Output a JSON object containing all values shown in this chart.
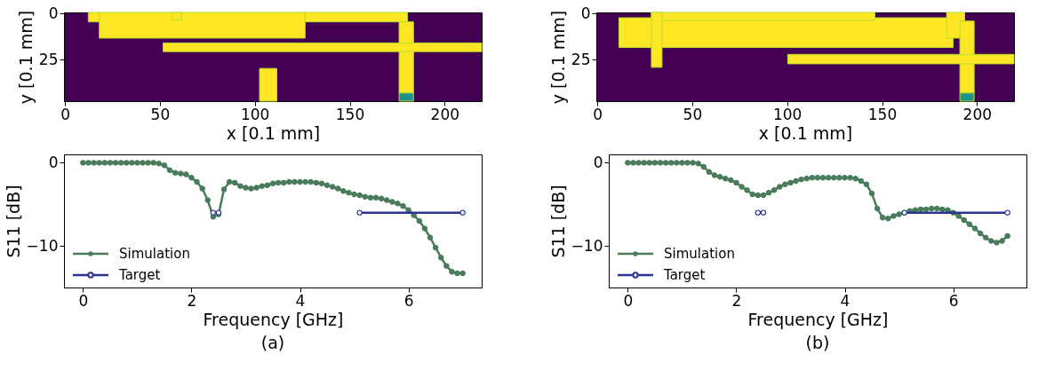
{
  "chart_data": [
    {
      "type": "scatter",
      "xlabel": "x [0.1 mm]",
      "ylabel": "y [0.1 mm]",
      "xlim": [
        -0.5,
        219.5
      ],
      "ylim": [
        47.5,
        -0.5
      ],
      "xticks": [
        0,
        50,
        100,
        150,
        200
      ],
      "yticks": [
        0,
        25
      ]
    },
    {
      "type": "scatter",
      "xlabel": "x [0.1 mm]",
      "ylabel": "y [0.1 mm]",
      "xlim": [
        -0.5,
        219.5
      ],
      "ylim": [
        47.5,
        -0.5
      ],
      "xticks": [
        0,
        50,
        100,
        150,
        200
      ],
      "yticks": [
        0,
        25
      ]
    },
    {
      "type": "line",
      "xlabel": "Frequency [GHz]",
      "ylabel": "S11 [dB]",
      "xlim": [
        -0.35,
        7.35
      ],
      "ylim": [
        -15,
        1
      ],
      "xticks": [
        0,
        2,
        4,
        6
      ],
      "yticks": [
        0,
        -10
      ],
      "grid": false,
      "legend": "bottom left",
      "marker": "circle",
      "line_style": "solid",
      "annotations": [
        "(a)"
      ],
      "series": [
        {
          "name": "Simulation",
          "color": "#4a7c5c",
          "x": [
            0,
            0.1,
            0.2,
            0.3,
            0.4,
            0.5,
            0.6,
            0.7,
            0.8,
            0.9,
            1.0,
            1.1,
            1.2,
            1.3,
            1.4,
            1.5,
            1.6,
            1.7,
            1.8,
            1.9,
            2.0,
            2.1,
            2.2,
            2.3,
            2.4,
            2.5,
            2.6,
            2.7,
            2.8,
            2.9,
            3.0,
            3.1,
            3.2,
            3.3,
            3.4,
            3.5,
            3.6,
            3.7,
            3.8,
            3.9,
            4.0,
            4.1,
            4.2,
            4.3,
            4.4,
            4.5,
            4.6,
            4.7,
            4.8,
            4.9,
            5.0,
            5.1,
            5.2,
            5.3,
            5.4,
            5.5,
            5.6,
            5.7,
            5.8,
            5.9,
            6.0,
            6.1,
            6.2,
            6.3,
            6.4,
            6.5,
            6.6,
            6.7,
            6.8,
            6.9,
            7.0
          ],
          "values": [
            0,
            0,
            0,
            0,
            0,
            0,
            0,
            0,
            0,
            0,
            0,
            0,
            0,
            0,
            -0.1,
            -0.3,
            -0.9,
            -1.2,
            -1.3,
            -1.4,
            -1.8,
            -2.3,
            -3.1,
            -4.5,
            -6.5,
            -6.2,
            -3.2,
            -2.3,
            -2.4,
            -2.8,
            -3.0,
            -3.1,
            -3.0,
            -2.8,
            -2.7,
            -2.5,
            -2.4,
            -2.4,
            -2.3,
            -2.3,
            -2.3,
            -2.3,
            -2.3,
            -2.4,
            -2.5,
            -2.7,
            -2.9,
            -3.1,
            -3.4,
            -3.6,
            -3.8,
            -3.9,
            -4.1,
            -4.2,
            -4.2,
            -4.3,
            -4.5,
            -4.7,
            -4.9,
            -5.2,
            -5.7,
            -6.3,
            -7.0,
            -7.9,
            -9.0,
            -10.2,
            -11.4,
            -12.4,
            -13.1,
            -13.3,
            -13.3
          ]
        },
        {
          "name": "Target",
          "color": "#2b3494",
          "x": [
            2.4,
            2.5,
            3.8,
            5.1,
            7.0
          ],
          "values": [
            -6,
            -6,
            null,
            -6,
            -6
          ]
        }
      ]
    },
    {
      "type": "line",
      "xlabel": "Frequency [GHz]",
      "ylabel": "S11 [dB]",
      "xlim": [
        -0.35,
        7.35
      ],
      "ylim": [
        -15,
        1
      ],
      "xticks": [
        0,
        2,
        4,
        6
      ],
      "yticks": [
        0,
        -10
      ],
      "grid": false,
      "legend": "bottom left",
      "marker": "circle",
      "line_style": "solid",
      "annotations": [
        "(b)"
      ],
      "series": [
        {
          "name": "Simulation",
          "color": "#4a7c5c",
          "x": [
            0,
            0.1,
            0.2,
            0.3,
            0.4,
            0.5,
            0.6,
            0.7,
            0.8,
            0.9,
            1.0,
            1.1,
            1.2,
            1.3,
            1.4,
            1.5,
            1.6,
            1.7,
            1.8,
            1.9,
            2.0,
            2.1,
            2.2,
            2.3,
            2.4,
            2.5,
            2.6,
            2.7,
            2.8,
            2.9,
            3.0,
            3.1,
            3.2,
            3.3,
            3.4,
            3.5,
            3.6,
            3.7,
            3.8,
            3.9,
            4.0,
            4.1,
            4.2,
            4.3,
            4.4,
            4.5,
            4.6,
            4.7,
            4.8,
            4.9,
            5.0,
            5.1,
            5.2,
            5.3,
            5.4,
            5.5,
            5.6,
            5.7,
            5.8,
            5.9,
            6.0,
            6.1,
            6.2,
            6.3,
            6.4,
            6.5,
            6.6,
            6.7,
            6.8,
            6.9,
            7.0
          ],
          "values": [
            0,
            0,
            0,
            0,
            0,
            0,
            0,
            0,
            0,
            0,
            0,
            0,
            0,
            -0.1,
            -0.5,
            -1.1,
            -1.5,
            -1.7,
            -1.9,
            -2.1,
            -2.4,
            -2.9,
            -3.3,
            -3.8,
            -3.9,
            -3.9,
            -3.6,
            -3.3,
            -2.9,
            -2.6,
            -2.4,
            -2.2,
            -2.0,
            -1.9,
            -1.8,
            -1.8,
            -1.8,
            -1.8,
            -1.8,
            -1.8,
            -1.8,
            -1.8,
            -1.9,
            -2.2,
            -2.6,
            -3.7,
            -5.5,
            -6.6,
            -6.7,
            -6.4,
            -6.2,
            -6.0,
            -5.8,
            -5.7,
            -5.6,
            -5.6,
            -5.5,
            -5.5,
            -5.6,
            -5.7,
            -6.0,
            -6.4,
            -6.9,
            -7.4,
            -7.9,
            -8.5,
            -9.0,
            -9.4,
            -9.6,
            -9.4,
            -8.8
          ]
        },
        {
          "name": "Target",
          "color": "#2b3494",
          "x": [
            2.4,
            2.5,
            3.8,
            5.1,
            7.0
          ],
          "values": [
            -6,
            -6,
            null,
            -6,
            -6
          ]
        }
      ]
    }
  ]
}
